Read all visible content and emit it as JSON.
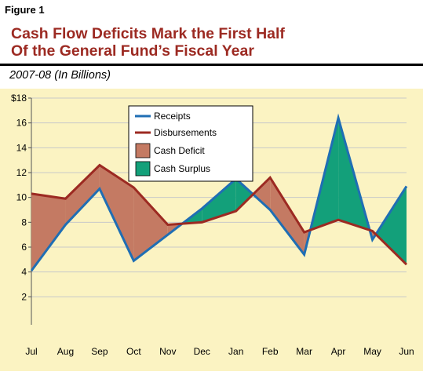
{
  "figure_label": "Figure 1",
  "title_line1": "Cash Flow Deficits Mark the First Half",
  "title_line2": "Of the General Fund’s Fiscal Year",
  "subtitle": "2007-08 (In Billions)",
  "colors": {
    "background": "#fbf3c2",
    "grid": "#c8c8c8",
    "receipts": "#1f6eb4",
    "disbursements": "#9c2a22",
    "deficit_fill": "#c47a63",
    "surplus_fill": "#13a07a",
    "title": "#9c2a22"
  },
  "chart_data": {
    "type": "area",
    "categories": [
      "Jul",
      "Aug",
      "Sep",
      "Oct",
      "Nov",
      "Dec",
      "Jan",
      "Feb",
      "Mar",
      "Apr",
      "May",
      "Jun"
    ],
    "series": [
      {
        "name": "Receipts",
        "values": [
          4.1,
          7.8,
          10.7,
          4.9,
          7.0,
          9.1,
          11.5,
          9.0,
          5.4,
          16.4,
          6.6,
          10.9
        ]
      },
      {
        "name": "Disbursements",
        "values": [
          10.3,
          9.9,
          12.6,
          10.8,
          7.8,
          8.0,
          8.9,
          11.6,
          7.2,
          8.2,
          7.3,
          4.6
        ]
      }
    ],
    "fill_legend": [
      "Cash Deficit",
      "Cash Surplus"
    ],
    "ylim": [
      0,
      18
    ],
    "yticks": [
      2,
      4,
      6,
      8,
      10,
      12,
      14,
      16,
      18
    ],
    "ytick_labels": [
      "2",
      "4",
      "6",
      "8",
      "10",
      "12",
      "14",
      "16",
      "$18"
    ],
    "grid": true,
    "legend_position": "top-center"
  }
}
